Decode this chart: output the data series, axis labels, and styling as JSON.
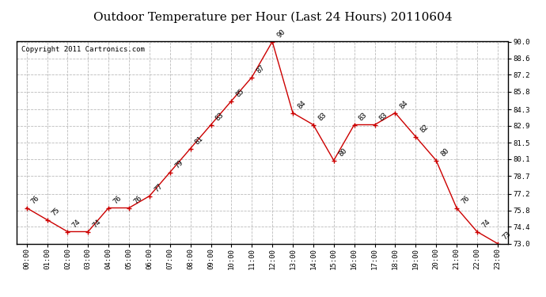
{
  "title": "Outdoor Temperature per Hour (Last 24 Hours) 20110604",
  "copyright": "Copyright 2011 Cartronics.com",
  "hours": [
    "00:00",
    "01:00",
    "02:00",
    "03:00",
    "04:00",
    "05:00",
    "06:00",
    "07:00",
    "08:00",
    "09:00",
    "10:00",
    "11:00",
    "12:00",
    "13:00",
    "14:00",
    "15:00",
    "16:00",
    "17:00",
    "18:00",
    "19:00",
    "20:00",
    "21:00",
    "22:00",
    "23:00"
  ],
  "temps": [
    76,
    75,
    74,
    74,
    76,
    76,
    77,
    79,
    81,
    83,
    85,
    87,
    90,
    84,
    83,
    80,
    83,
    83,
    84,
    82,
    80,
    76,
    74,
    73
  ],
  "line_color": "#cc0000",
  "marker": "+",
  "bg_color": "#ffffff",
  "grid_color": "#bbbbbb",
  "ylim_min": 73.0,
  "ylim_max": 90.0,
  "yticks": [
    73.0,
    74.4,
    75.8,
    77.2,
    78.7,
    80.1,
    81.5,
    82.9,
    84.3,
    85.8,
    87.2,
    88.6,
    90.0
  ],
  "title_fontsize": 11,
  "copyright_fontsize": 6.5,
  "label_fontsize": 6.5,
  "tick_fontsize": 6.5
}
